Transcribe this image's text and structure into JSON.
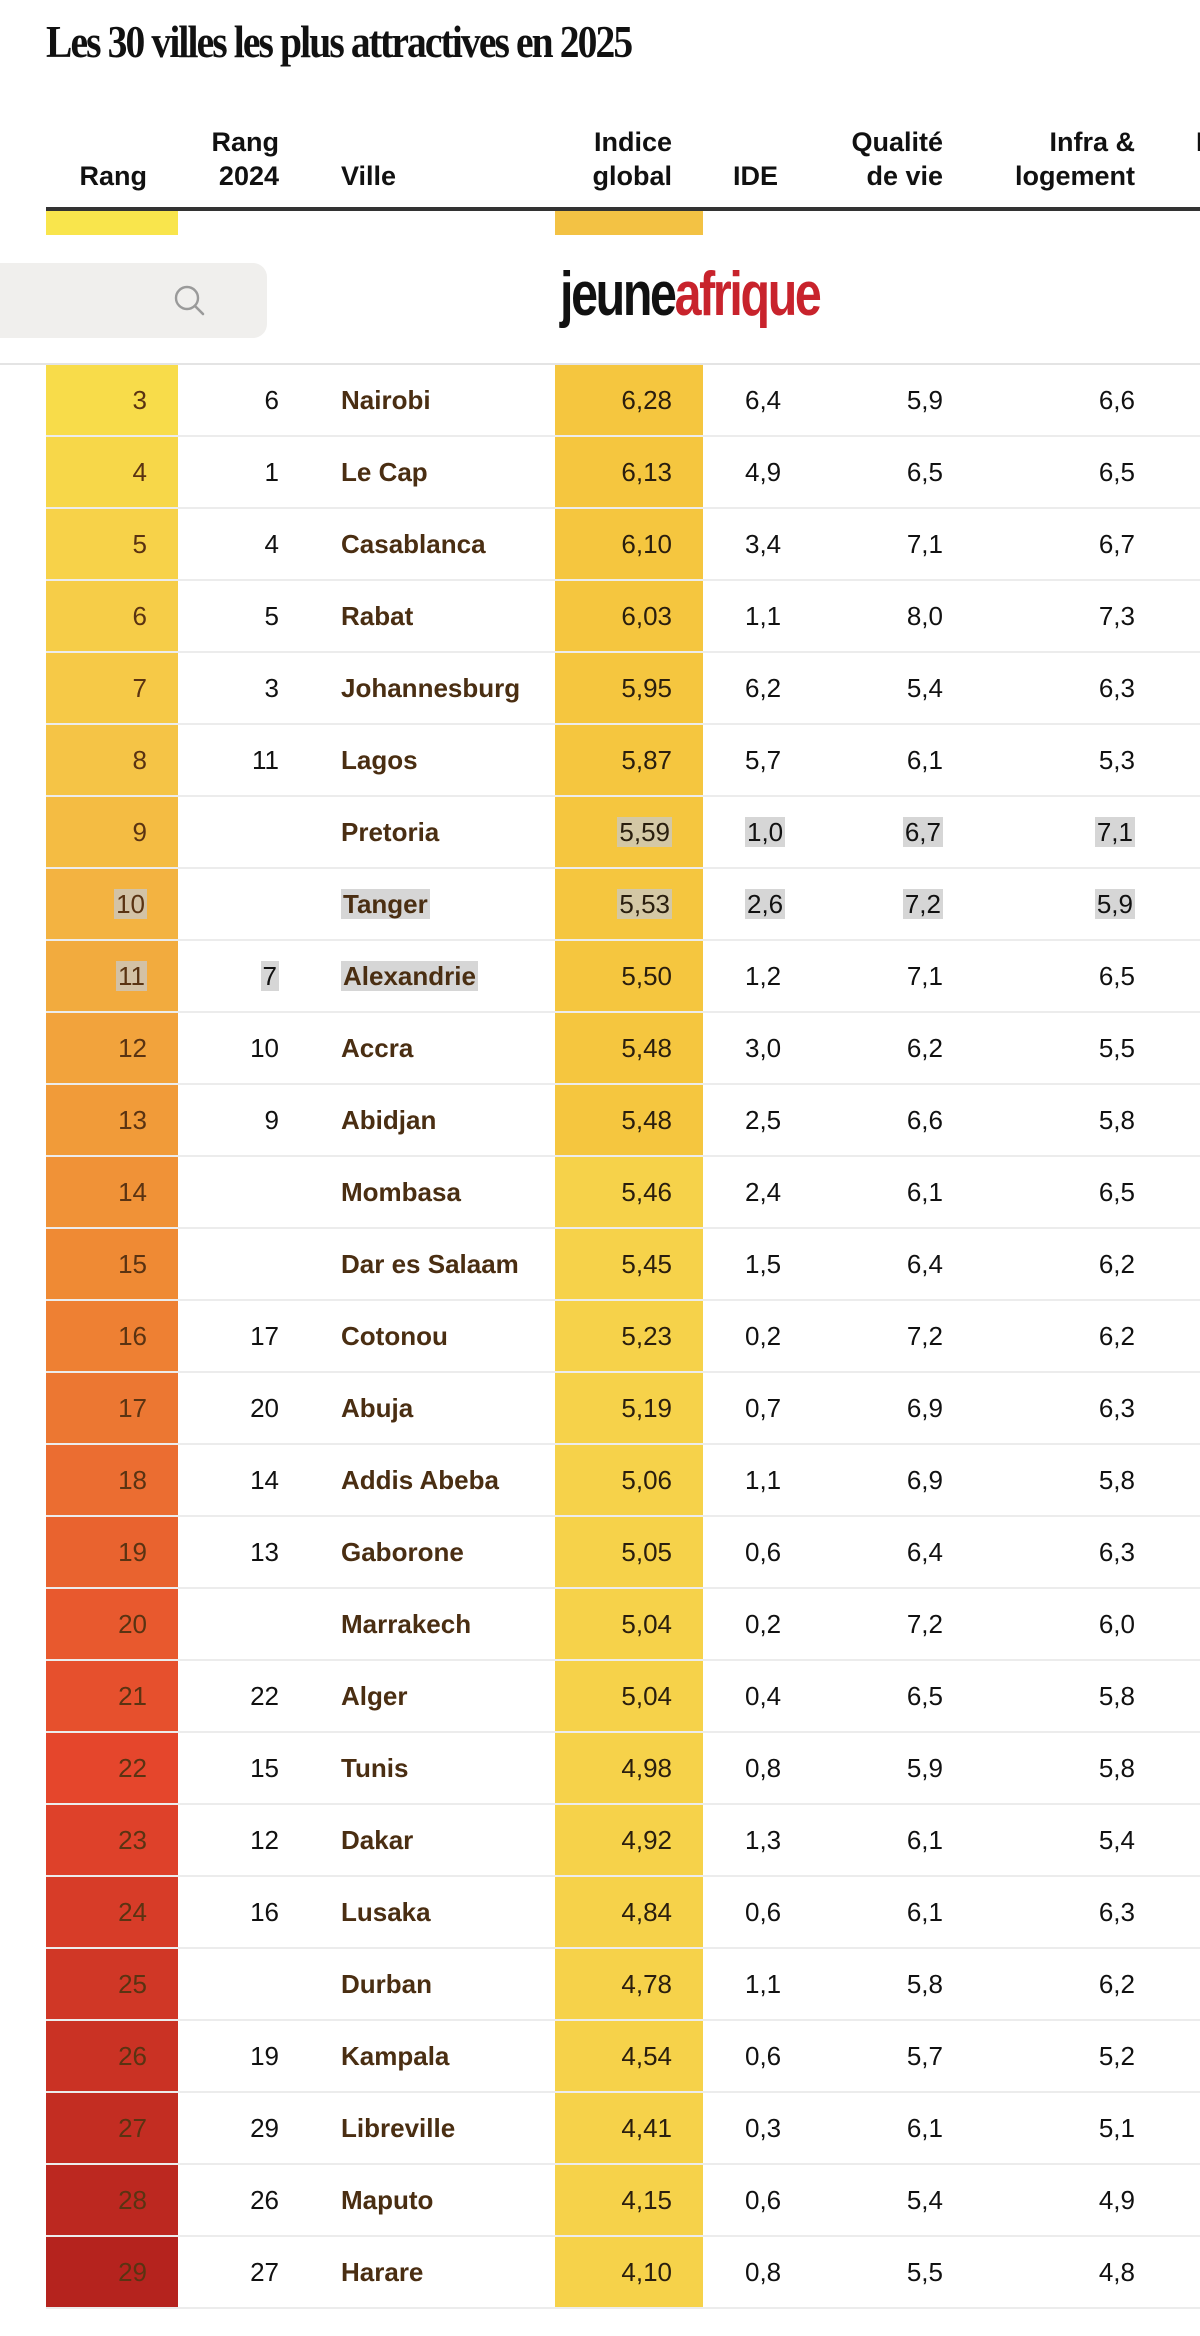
{
  "title": "Les 30 villes les plus attractives en 2025",
  "header": {
    "search": {
      "placeholder": "",
      "icon": "search-icon"
    },
    "logo": {
      "part1": "jeune",
      "part2": "afrique",
      "color1": "#111111",
      "color2": "#c8232c"
    }
  },
  "table": {
    "columns": [
      {
        "key": "rang",
        "label": "Rang"
      },
      {
        "key": "rang2024",
        "label": "Rang\n2024"
      },
      {
        "key": "ville",
        "label": "Ville"
      },
      {
        "key": "indice",
        "label": "Indice\nglobal"
      },
      {
        "key": "ide",
        "label": "IDE"
      },
      {
        "key": "qualite",
        "label": "Qualité\nde vie"
      },
      {
        "key": "infra",
        "label": "Infra &\nlogement"
      },
      {
        "key": "next",
        "label": "I"
      }
    ],
    "colors": {
      "rang_gradient_top": "#f9e54c",
      "rang_gradient_mid": "#ef8a34",
      "rang_gradient_red": "#e5392c",
      "rang_gradient_bottom": "#b5231e",
      "indice_bg": "#f5c942",
      "city_text": "#4a2e12",
      "selection": "#d6d6d6"
    },
    "rows": [
      {
        "rang": "3",
        "rang2024": "6",
        "ville": "Nairobi",
        "indice": "6,28",
        "ide": "6,4",
        "qualite": "5,9",
        "infra": "6,6"
      },
      {
        "rang": "4",
        "rang2024": "1",
        "ville": "Le Cap",
        "indice": "6,13",
        "ide": "4,9",
        "qualite": "6,5",
        "infra": "6,5"
      },
      {
        "rang": "5",
        "rang2024": "4",
        "ville": "Casablanca",
        "indice": "6,10",
        "ide": "3,4",
        "qualite": "7,1",
        "infra": "6,7"
      },
      {
        "rang": "6",
        "rang2024": "5",
        "ville": "Rabat",
        "indice": "6,03",
        "ide": "1,1",
        "qualite": "8,0",
        "infra": "7,3"
      },
      {
        "rang": "7",
        "rang2024": "3",
        "ville": "Johannesburg",
        "indice": "5,95",
        "ide": "6,2",
        "qualite": "5,4",
        "infra": "6,3"
      },
      {
        "rang": "8",
        "rang2024": "11",
        "ville": "Lagos",
        "indice": "5,87",
        "ide": "5,7",
        "qualite": "6,1",
        "infra": "5,3"
      },
      {
        "rang": "9",
        "rang2024": "",
        "ville": "Pretoria",
        "indice": "5,59",
        "ide": "1,0",
        "qualite": "6,7",
        "infra": "7,1"
      },
      {
        "rang": "10",
        "rang2024": "",
        "ville": "Tanger",
        "indice": "5,53",
        "ide": "2,6",
        "qualite": "7,2",
        "infra": "5,9"
      },
      {
        "rang": "11",
        "rang2024": "7",
        "ville": "Alexandrie",
        "indice": "5,50",
        "ide": "1,2",
        "qualite": "7,1",
        "infra": "6,5"
      },
      {
        "rang": "12",
        "rang2024": "10",
        "ville": "Accra",
        "indice": "5,48",
        "ide": "3,0",
        "qualite": "6,2",
        "infra": "5,5"
      },
      {
        "rang": "13",
        "rang2024": "9",
        "ville": "Abidjan",
        "indice": "5,48",
        "ide": "2,5",
        "qualite": "6,6",
        "infra": "5,8"
      },
      {
        "rang": "14",
        "rang2024": "",
        "ville": "Mombasa",
        "indice": "5,46",
        "ide": "2,4",
        "qualite": "6,1",
        "infra": "6,5"
      },
      {
        "rang": "15",
        "rang2024": "",
        "ville": "Dar es Salaam",
        "indice": "5,45",
        "ide": "1,5",
        "qualite": "6,4",
        "infra": "6,2"
      },
      {
        "rang": "16",
        "rang2024": "17",
        "ville": "Cotonou",
        "indice": "5,23",
        "ide": "0,2",
        "qualite": "7,2",
        "infra": "6,2"
      },
      {
        "rang": "17",
        "rang2024": "20",
        "ville": "Abuja",
        "indice": "5,19",
        "ide": "0,7",
        "qualite": "6,9",
        "infra": "6,3"
      },
      {
        "rang": "18",
        "rang2024": "14",
        "ville": "Addis Abeba",
        "indice": "5,06",
        "ide": "1,1",
        "qualite": "6,9",
        "infra": "5,8"
      },
      {
        "rang": "19",
        "rang2024": "13",
        "ville": "Gaborone",
        "indice": "5,05",
        "ide": "0,6",
        "qualite": "6,4",
        "infra": "6,3"
      },
      {
        "rang": "20",
        "rang2024": "",
        "ville": "Marrakech",
        "indice": "5,04",
        "ide": "0,2",
        "qualite": "7,2",
        "infra": "6,0"
      },
      {
        "rang": "21",
        "rang2024": "22",
        "ville": "Alger",
        "indice": "5,04",
        "ide": "0,4",
        "qualite": "6,5",
        "infra": "5,8"
      },
      {
        "rang": "22",
        "rang2024": "15",
        "ville": "Tunis",
        "indice": "4,98",
        "ide": "0,8",
        "qualite": "5,9",
        "infra": "5,8"
      },
      {
        "rang": "23",
        "rang2024": "12",
        "ville": "Dakar",
        "indice": "4,92",
        "ide": "1,3",
        "qualite": "6,1",
        "infra": "5,4"
      },
      {
        "rang": "24",
        "rang2024": "16",
        "ville": "Lusaka",
        "indice": "4,84",
        "ide": "0,6",
        "qualite": "6,1",
        "infra": "6,3"
      },
      {
        "rang": "25",
        "rang2024": "",
        "ville": "Durban",
        "indice": "4,78",
        "ide": "1,1",
        "qualite": "5,8",
        "infra": "6,2"
      },
      {
        "rang": "26",
        "rang2024": "19",
        "ville": "Kampala",
        "indice": "4,54",
        "ide": "0,6",
        "qualite": "5,7",
        "infra": "5,2"
      },
      {
        "rang": "27",
        "rang2024": "29",
        "ville": "Libreville",
        "indice": "4,41",
        "ide": "0,3",
        "qualite": "6,1",
        "infra": "5,1"
      },
      {
        "rang": "28",
        "rang2024": "26",
        "ville": "Maputo",
        "indice": "4,15",
        "ide": "0,6",
        "qualite": "5,4",
        "infra": "4,9"
      },
      {
        "rang": "29",
        "rang2024": "27",
        "ville": "Harare",
        "indice": "4,10",
        "ide": "0,8",
        "qualite": "5,5",
        "infra": "4,8"
      }
    ],
    "selection": {
      "Pretoria": [
        "indice_partial",
        "ide",
        "qualite",
        "infra"
      ],
      "Tanger": [
        "rang",
        "ville",
        "indice",
        "ide",
        "qualite",
        "infra"
      ],
      "Alexandrie": [
        "rang",
        "rang2024",
        "ville"
      ]
    }
  }
}
